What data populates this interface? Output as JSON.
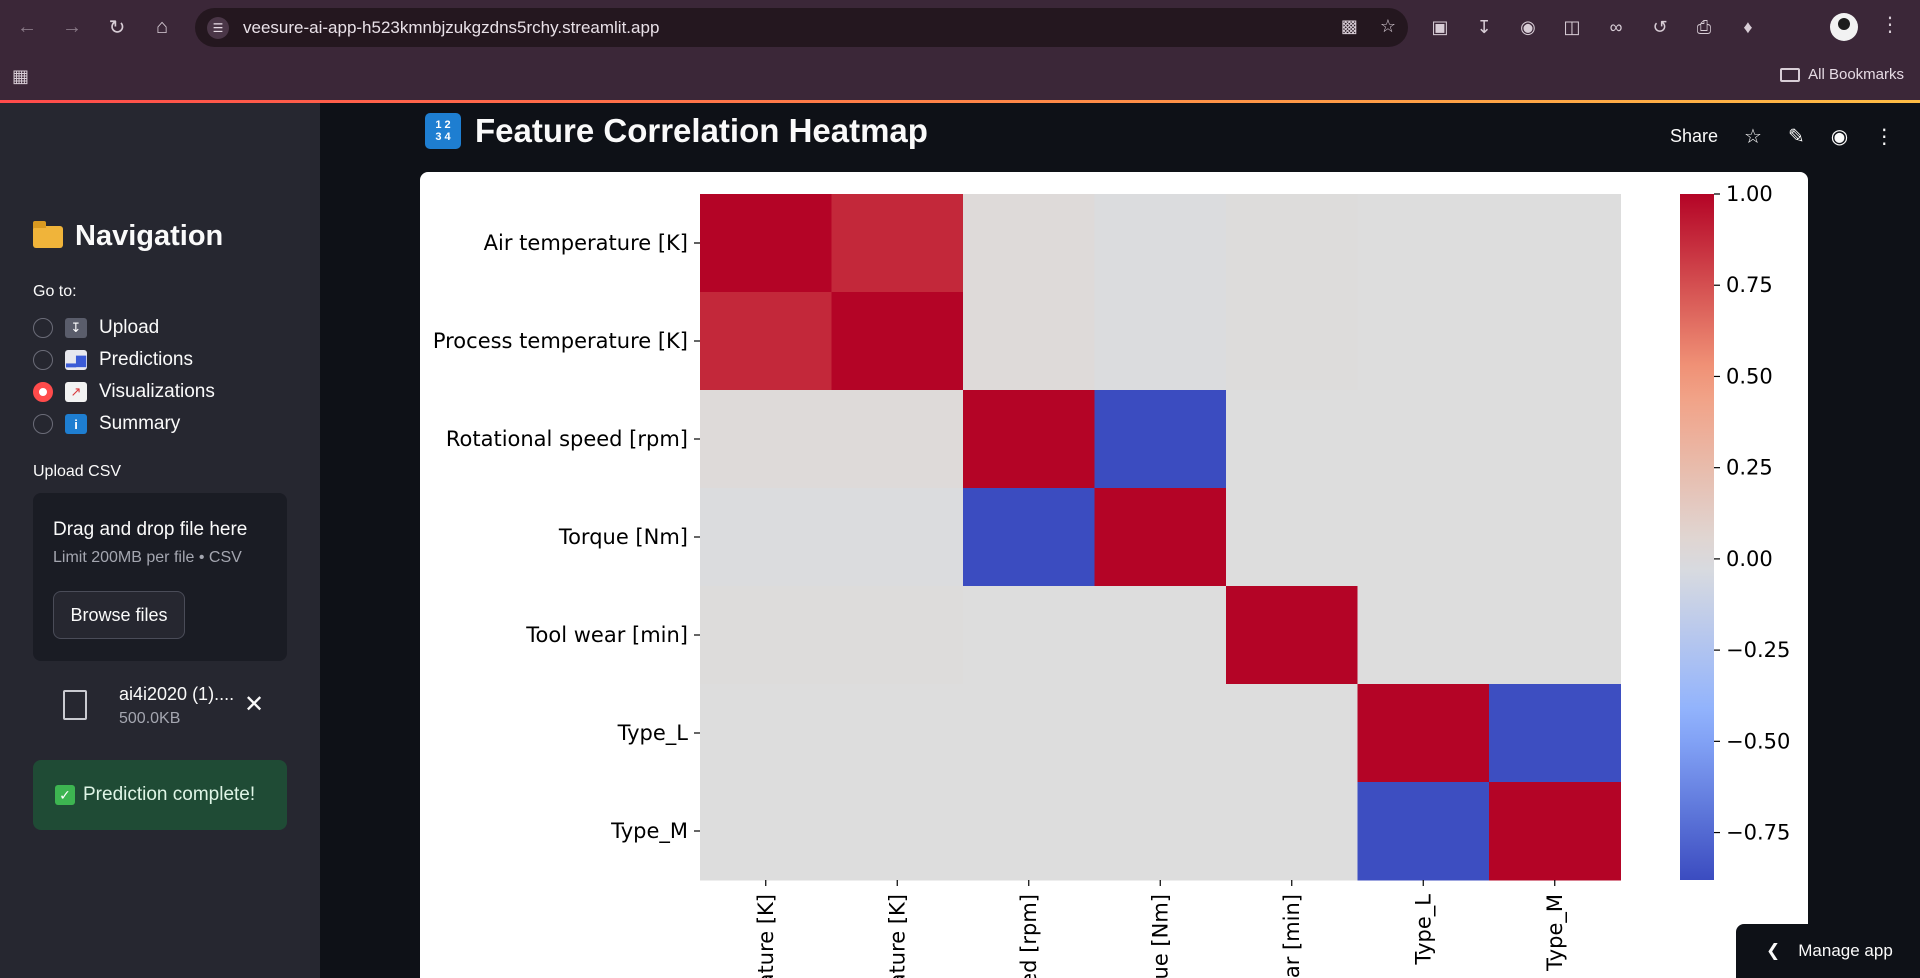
{
  "browser": {
    "url": "veesure-ai-app-h523kmnbjzukgzdns5rchy.streamlit.app",
    "bookmarks_label": "All Bookmarks"
  },
  "sidebar": {
    "title": "Navigation",
    "goto_label": "Go to:",
    "options": [
      {
        "label": "Upload",
        "icon": "inbox-tray-icon",
        "selected": false
      },
      {
        "label": "Predictions",
        "icon": "bar-chart-icon",
        "selected": false
      },
      {
        "label": "Visualizations",
        "icon": "chart-increasing-icon",
        "selected": true
      },
      {
        "label": "Summary",
        "icon": "information-icon",
        "selected": false
      }
    ],
    "upload_label": "Upload CSV",
    "dropzone": {
      "title": "Drag and drop file here",
      "subtitle": "Limit 200MB per file • CSV",
      "button": "Browse files"
    },
    "file": {
      "name": "ai4i2020 (1)....",
      "size": "500.0KB"
    },
    "success": "Prediction complete!"
  },
  "header": {
    "title": "Feature Correlation Heatmap",
    "share": "Share"
  },
  "manage_app": "Manage app",
  "chart_data": {
    "type": "heatmap",
    "title": "",
    "y_labels": [
      "Air temperature [K]",
      "Process temperature [K]",
      "Rotational speed [rpm]",
      "Torque [Nm]",
      "Tool wear [min]",
      "Type_L",
      "Type_M"
    ],
    "x_labels_visible": [
      "ature [K]",
      "ature [K]",
      "ed [rpm]",
      "ue [Nm]",
      "ar [min]",
      "Type_L",
      "Type_M"
    ],
    "values": [
      [
        1.0,
        0.88,
        0.02,
        -0.01,
        0.01,
        0.0,
        0.0
      ],
      [
        0.88,
        1.0,
        0.02,
        -0.01,
        0.01,
        0.0,
        0.0
      ],
      [
        0.02,
        0.02,
        1.0,
        -0.88,
        0.0,
        0.0,
        0.0
      ],
      [
        -0.01,
        -0.01,
        -0.88,
        1.0,
        -0.0,
        0.0,
        0.0
      ],
      [
        0.01,
        0.01,
        0.0,
        -0.0,
        1.0,
        0.0,
        0.0
      ],
      [
        0.0,
        0.0,
        0.0,
        0.0,
        0.0,
        1.0,
        -0.87
      ],
      [
        0.0,
        0.0,
        0.0,
        0.0,
        0.0,
        -0.87,
        1.0
      ]
    ],
    "colorbar": {
      "ticks": [
        "1.00",
        "0.75",
        "0.50",
        "0.25",
        "0.00",
        "−0.25",
        "−0.50",
        "−0.75"
      ],
      "range": [
        -0.88,
        1.0
      ],
      "colormap": "coolwarm"
    }
  }
}
